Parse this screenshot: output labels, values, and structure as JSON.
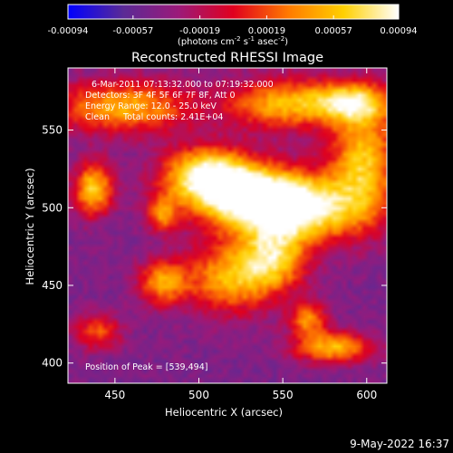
{
  "chart_data": {
    "type": "heatmap",
    "title": "Reconstructed RHESSI Image",
    "xlabel": "Heliocentric X (arcsec)",
    "ylabel": "Heliocentric Y (arcsec)",
    "xlim": [
      422,
      612
    ],
    "ylim": [
      387,
      590
    ],
    "xticks": [
      450,
      500,
      550,
      600
    ],
    "yticks": [
      400,
      450,
      500,
      550
    ],
    "colorbar": {
      "range": [
        -0.00094,
        0.00094
      ],
      "ticks": [
        "-0.00094",
        "-0.00057",
        "-0.00019",
        "0.00019",
        "0.00057",
        "0.00094"
      ],
      "units_prefix": "(photons cm",
      "units_exp1": "-2",
      "units_mid": " s",
      "units_exp2": "-1",
      "units_mid2": " asec",
      "units_exp3": "-2",
      "units_suffix": ")"
    },
    "annotations": [
      "6-Mar-2011 07:13:32.000 to 07:19:32.000",
      "Detectors: 3F 4F 5F 6F 7F 8F, Att 0",
      "Energy Range: 12.0 - 25.0 keV",
      "Clean     Total counts: 2.41E+04"
    ],
    "peak_label": "Position of Peak = [539,494]",
    "peak": [
      539,
      494
    ],
    "sources": [
      {
        "x": 532,
        "y": 508,
        "sx": 28,
        "sy": 14,
        "amp": 0.00094
      },
      {
        "x": 505,
        "y": 522,
        "sx": 18,
        "sy": 12,
        "amp": 0.00075
      },
      {
        "x": 560,
        "y": 497,
        "sx": 26,
        "sy": 14,
        "amp": 0.00065
      },
      {
        "x": 598,
        "y": 530,
        "sx": 14,
        "sy": 26,
        "amp": 0.0006
      },
      {
        "x": 590,
        "y": 568,
        "sx": 18,
        "sy": 9,
        "amp": 0.0006
      },
      {
        "x": 548,
        "y": 567,
        "sx": 22,
        "sy": 12,
        "amp": 0.00045
      },
      {
        "x": 455,
        "y": 565,
        "sx": 30,
        "sy": 12,
        "amp": 0.0005
      },
      {
        "x": 519,
        "y": 455,
        "sx": 20,
        "sy": 16,
        "amp": 0.0005
      },
      {
        "x": 545,
        "y": 468,
        "sx": 14,
        "sy": 14,
        "amp": 0.00045
      },
      {
        "x": 437,
        "y": 512,
        "sx": 8,
        "sy": 12,
        "amp": 0.00065
      },
      {
        "x": 478,
        "y": 452,
        "sx": 10,
        "sy": 10,
        "amp": 0.0004
      },
      {
        "x": 565,
        "y": 428,
        "sx": 8,
        "sy": 8,
        "amp": 0.00035
      },
      {
        "x": 580,
        "y": 410,
        "sx": 16,
        "sy": 7,
        "amp": 0.00055
      },
      {
        "x": 478,
        "y": 496,
        "sx": 6,
        "sy": 8,
        "amp": 0.0003
      },
      {
        "x": 440,
        "y": 420,
        "sx": 10,
        "sy": 8,
        "amp": 0.0002
      }
    ]
  },
  "footer": {
    "timestamp": "9-May-2022 16:37"
  },
  "colors": {
    "background": "#000000",
    "foreground": "#ffffff",
    "palette": [
      "#0000ff",
      "#5a2a96",
      "#9b1a7a",
      "#e0001e",
      "#ff7a00",
      "#ffd000",
      "#ffffff"
    ]
  }
}
